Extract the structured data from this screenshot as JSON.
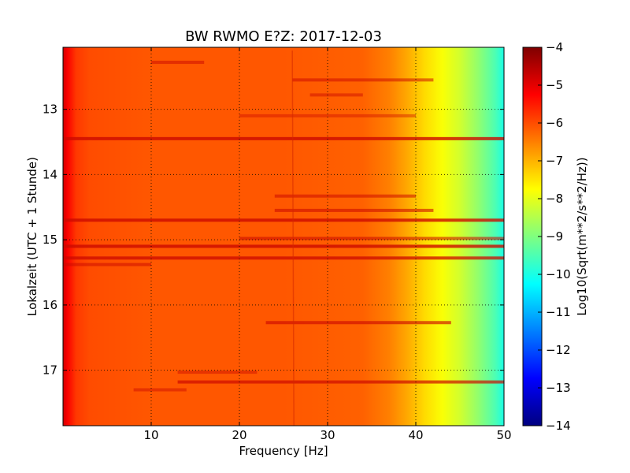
{
  "chart_data": {
    "type": "heatmap",
    "title": "BW RWMO E?Z: 2017-12-03",
    "xlabel": "Frequency [Hz]",
    "ylabel": "Lokalzeit (UTC + 1 Stunde)",
    "xlim": [
      0,
      50
    ],
    "ylim": [
      17.85,
      12.05
    ],
    "x_ticks": [
      10,
      20,
      30,
      40,
      50
    ],
    "y_ticks": [
      13,
      14,
      15,
      16,
      17
    ],
    "grid": true,
    "colorbar": {
      "label": "Log10(Sqrt(m**2/s**2/Hz))",
      "range": [
        -14,
        -4
      ],
      "ticks": [
        -4,
        -5,
        -6,
        -7,
        -8,
        -9,
        -10,
        -11,
        -12,
        -13,
        -14
      ],
      "colormap": "jet"
    },
    "background_profile": {
      "frequency_hz": [
        0,
        0.5,
        1.5,
        3,
        10,
        25,
        34,
        37,
        39,
        41,
        43,
        45,
        47,
        49,
        50
      ],
      "log_amplitude": [
        -4.8,
        -5.2,
        -5.8,
        -6.0,
        -6.1,
        -6.1,
        -6.2,
        -6.5,
        -6.9,
        -7.4,
        -7.8,
        -8.2,
        -8.8,
        -9.5,
        -10.0
      ]
    },
    "horizontal_bands": [
      {
        "time": 12.28,
        "f_start": 10,
        "f_end": 16,
        "strength": 0.5
      },
      {
        "time": 12.55,
        "f_start": 26,
        "f_end": 42,
        "strength": 0.5
      },
      {
        "time": 12.78,
        "f_start": 28,
        "f_end": 34,
        "strength": 0.4
      },
      {
        "time": 13.1,
        "f_start": 20,
        "f_end": 40,
        "strength": 0.3
      },
      {
        "time": 13.45,
        "f_start": 0,
        "f_end": 50,
        "strength": 1.0
      },
      {
        "time": 14.33,
        "f_start": 24,
        "f_end": 40,
        "strength": 0.5
      },
      {
        "time": 14.55,
        "f_start": 24,
        "f_end": 42,
        "strength": 0.6
      },
      {
        "time": 14.7,
        "f_start": 0,
        "f_end": 50,
        "strength": 1.0
      },
      {
        "time": 14.98,
        "f_start": 20,
        "f_end": 50,
        "strength": 0.6
      },
      {
        "time": 15.1,
        "f_start": 0,
        "f_end": 50,
        "strength": 1.0
      },
      {
        "time": 15.28,
        "f_start": 0,
        "f_end": 50,
        "strength": 0.9
      },
      {
        "time": 15.38,
        "f_start": 0,
        "f_end": 10,
        "strength": 0.5
      },
      {
        "time": 16.27,
        "f_start": 23,
        "f_end": 44,
        "strength": 0.7
      },
      {
        "time": 17.03,
        "f_start": 13,
        "f_end": 22,
        "strength": 0.4
      },
      {
        "time": 17.18,
        "f_start": 13,
        "f_end": 50,
        "strength": 0.8
      },
      {
        "time": 17.3,
        "f_start": 8,
        "f_end": 14,
        "strength": 0.4
      }
    ],
    "vertical_lines": [
      {
        "frequency": 26,
        "t_start": 12.1,
        "t_end": 17.85
      }
    ]
  }
}
